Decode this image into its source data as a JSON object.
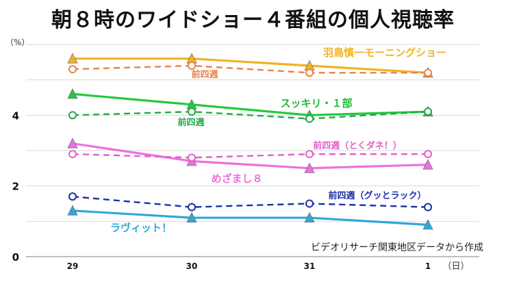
{
  "chart_data": {
    "type": "line",
    "title": "朝８時のワイドショー４番組の個人視聴率",
    "ylabel": "（%）",
    "xlabel": "（日）",
    "source_note": "ビデオリサーチ関東地区データから作成",
    "categories": [
      "29",
      "30",
      "31",
      "1"
    ],
    "ylim": [
      0,
      6
    ],
    "yticks": [
      0,
      2,
      4
    ],
    "grid": true,
    "series": [
      {
        "name": "羽鳥慎一モーニングショー",
        "values": [
          5.6,
          5.6,
          5.4,
          5.2
        ],
        "color": "#F0B323",
        "dash": false,
        "marker": "triangle"
      },
      {
        "name": "前四週",
        "values": [
          5.3,
          5.4,
          5.2,
          5.2
        ],
        "color": "#E8824A",
        "dash": true,
        "marker": "circle"
      },
      {
        "name": "スッキリ・１部",
        "values": [
          4.6,
          4.3,
          4.0,
          4.1
        ],
        "color": "#22C93A",
        "dash": false,
        "marker": "triangle"
      },
      {
        "name": "前四週",
        "values": [
          4.0,
          4.1,
          3.9,
          4.1
        ],
        "color": "#22A84A",
        "dash": true,
        "marker": "circle"
      },
      {
        "name": "めざまし８",
        "values": [
          3.2,
          2.7,
          2.5,
          2.6
        ],
        "color": "#EE6FE0",
        "dash": false,
        "marker": "triangle"
      },
      {
        "name": "前四週（とくダネ！）",
        "values": [
          2.9,
          2.8,
          2.9,
          2.9
        ],
        "color": "#E060C8",
        "dash": true,
        "marker": "circle"
      },
      {
        "name": "前四週（グッとラック）",
        "values": [
          1.7,
          1.4,
          1.5,
          1.4
        ],
        "color": "#1A2FA8",
        "dash": true,
        "marker": "circle"
      },
      {
        "name": "ラヴィット！",
        "values": [
          1.3,
          1.1,
          1.1,
          0.9
        ],
        "color": "#2FA7D8",
        "dash": false,
        "marker": "triangle"
      }
    ]
  }
}
